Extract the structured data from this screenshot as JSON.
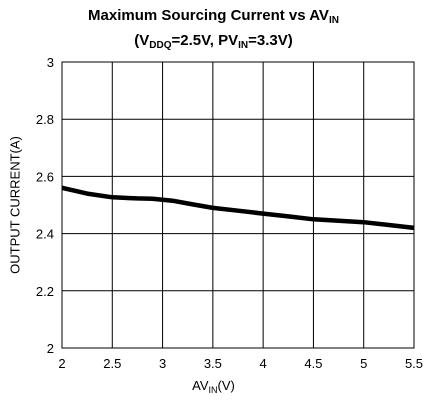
{
  "chart_data": {
    "type": "line",
    "title_line1_pre": "Maximum Sourcing Current vs AV",
    "title_line1_sub": "IN",
    "title_line2": {
      "open": "(V",
      "sub1": "DDQ",
      "mid": "=2.5V, PV",
      "sub2": "IN",
      "close": "=3.3V)"
    },
    "xlabel": {
      "pre": "AV",
      "sub": "IN",
      "post": "(V)"
    },
    "ylabel": "OUTPUT CURRENT(A)",
    "xlim": [
      2,
      5.5
    ],
    "ylim": [
      2,
      3
    ],
    "x_ticks": [
      "2",
      "2.5",
      "3",
      "3.5",
      "4",
      "4.5",
      "5",
      "5.5"
    ],
    "y_ticks": [
      "2",
      "2.2",
      "2.4",
      "2.6",
      "2.8",
      "3"
    ],
    "grid": true,
    "series": [
      {
        "color": "#000000",
        "x": [
          2.0,
          2.25,
          2.5,
          2.75,
          2.9,
          3.1,
          3.3,
          3.5,
          3.75,
          4.0,
          4.25,
          4.5,
          4.75,
          5.0,
          5.25,
          5.5
        ],
        "y": [
          2.56,
          2.54,
          2.527,
          2.523,
          2.522,
          2.515,
          2.502,
          2.49,
          2.48,
          2.47,
          2.46,
          2.45,
          2.445,
          2.44,
          2.43,
          2.42
        ]
      }
    ]
  }
}
